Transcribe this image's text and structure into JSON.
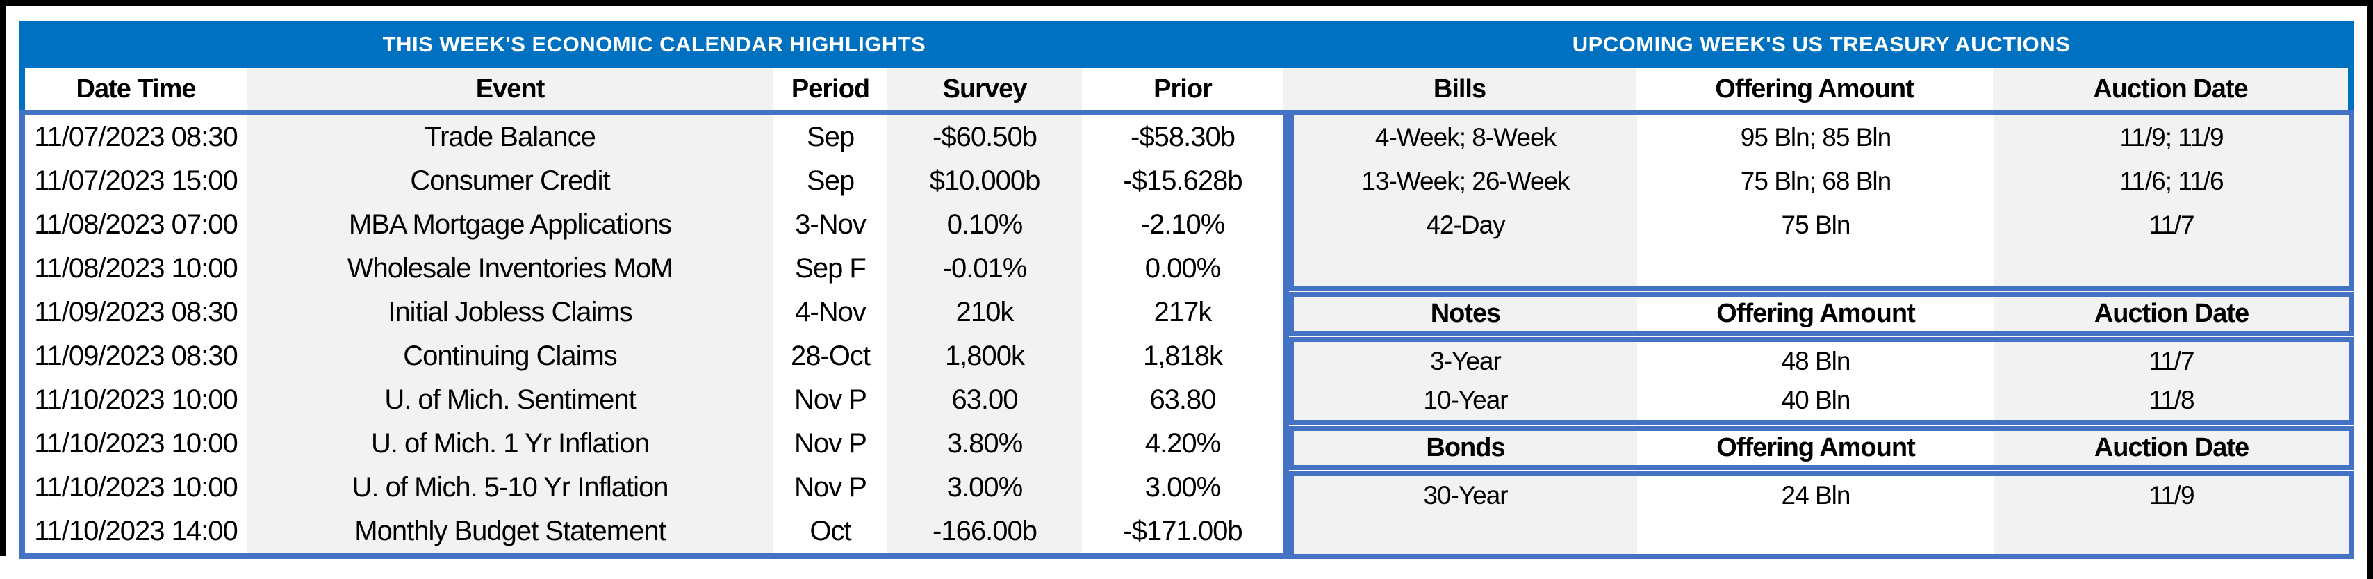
{
  "colors": {
    "title_bar_bg": "#0070C0",
    "title_text": "#FFFFFF",
    "box_border_blue": "#4472C4",
    "stripe_gray": "#F2F2F2",
    "frame_black": "#000000",
    "body_text": "#000000"
  },
  "left_table": {
    "title": "THIS WEEK'S ECONOMIC CALENDAR HIGHLIGHTS",
    "columns": [
      "Date Time",
      "Event",
      "Period",
      "Survey",
      "Prior"
    ],
    "rows": [
      [
        "11/07/2023 08:30",
        "Trade Balance",
        "Sep",
        "-$60.50b",
        "-$58.30b"
      ],
      [
        "11/07/2023 15:00",
        "Consumer Credit",
        "Sep",
        "$10.000b",
        "-$15.628b"
      ],
      [
        "11/08/2023 07:00",
        "MBA Mortgage Applications",
        "3-Nov",
        "0.10%",
        "-2.10%"
      ],
      [
        "11/08/2023 10:00",
        "Wholesale Inventories MoM",
        "Sep F",
        "-0.01%",
        "0.00%"
      ],
      [
        "11/09/2023 08:30",
        "Initial Jobless Claims",
        "4-Nov",
        "210k",
        "217k"
      ],
      [
        "11/09/2023 08:30",
        "Continuing Claims",
        "28-Oct",
        "1,800k",
        "1,818k"
      ],
      [
        "11/10/2023 10:00",
        "U. of Mich. Sentiment",
        "Nov P",
        "63.00",
        "63.80"
      ],
      [
        "11/10/2023 10:00",
        "U. of Mich. 1 Yr Inflation",
        "Nov P",
        "3.80%",
        "4.20%"
      ],
      [
        "11/10/2023 10:00",
        "U. of Mich. 5-10 Yr Inflation",
        "Nov P",
        "3.00%",
        "3.00%"
      ],
      [
        "11/10/2023 14:00",
        "Monthly Budget Statement",
        "Oct",
        "-166.00b",
        "-$171.00b"
      ]
    ]
  },
  "right_table": {
    "title": "UPCOMING WEEK'S US TREASURY AUCTIONS",
    "sections": [
      {
        "header": [
          "Bills",
          "Offering Amount",
          "Auction Date"
        ],
        "rows": [
          [
            "4-Week; 8-Week",
            "95 Bln; 85 Bln",
            "11/9; 11/9"
          ],
          [
            "13-Week; 26-Week",
            "75 Bln; 68 Bln",
            "11/6; 11/6"
          ],
          [
            "42-Day",
            "75 Bln",
            "11/7"
          ]
        ]
      },
      {
        "header": [
          "Notes",
          "Offering Amount",
          "Auction Date"
        ],
        "rows": [
          [
            "3-Year",
            "48 Bln",
            "11/7"
          ],
          [
            "10-Year",
            "40 Bln",
            "11/8"
          ]
        ]
      },
      {
        "header": [
          "Bonds",
          "Offering Amount",
          "Auction Date"
        ],
        "rows": [
          [
            "30-Year",
            "24 Bln",
            "11/9"
          ]
        ]
      }
    ]
  }
}
